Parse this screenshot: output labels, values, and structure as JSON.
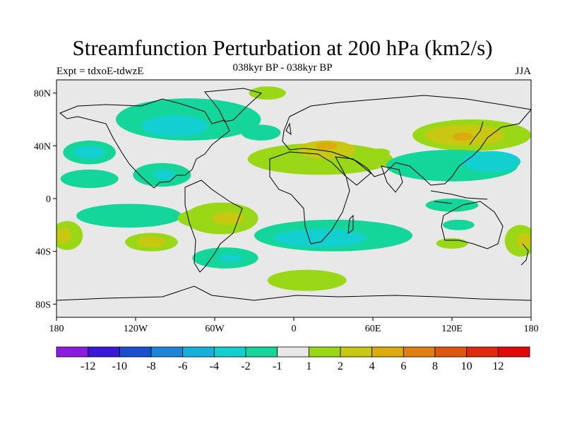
{
  "title": "Streamfunction Perturbation at 200 hPa (km2/s)",
  "subtitle": "038kyr BP - 038kyr BP",
  "expt_label": "Expt = tdxoE-tdwzE",
  "season": "JJA",
  "lat_ticks": [
    "80N",
    "40N",
    "0",
    "40S",
    "80S"
  ],
  "lon_ticks": [
    "180",
    "120W",
    "60W",
    "0",
    "60E",
    "120E",
    "180"
  ],
  "colorbar": {
    "colors": [
      "#8a1be0",
      "#3b18d8",
      "#1b4fd2",
      "#1a85d9",
      "#12b2da",
      "#14cfd0",
      "#15d69a",
      "#e8e8e8",
      "#9ad716",
      "#c8c812",
      "#dcab10",
      "#e07e12",
      "#e0560c",
      "#e02a0e",
      "#e00808"
    ],
    "labels": [
      "-12",
      "-10",
      "-8",
      "-6",
      "-4",
      "-2",
      "-1",
      "1",
      "2",
      "4",
      "6",
      "8",
      "10",
      "12"
    ]
  },
  "map": {
    "background": "#e8e8e8",
    "anomalies": [
      {
        "level": "-2",
        "color": "#15d69a",
        "lon": -80,
        "lat": 60,
        "rx": 55,
        "ry": 16
      },
      {
        "level": "-4",
        "color": "#14cfd0",
        "lon": -90,
        "lat": 55,
        "rx": 25,
        "ry": 8
      },
      {
        "level": "-2",
        "color": "#15d69a",
        "lon": -155,
        "lat": 35,
        "rx": 20,
        "ry": 9
      },
      {
        "level": "-4",
        "color": "#14cfd0",
        "lon": -155,
        "lat": 35,
        "rx": 12,
        "ry": 5
      },
      {
        "level": "-2",
        "color": "#15d69a",
        "lon": -155,
        "lat": 15,
        "rx": 22,
        "ry": 7
      },
      {
        "level": "-2",
        "color": "#15d69a",
        "lon": -100,
        "lat": 18,
        "rx": 22,
        "ry": 9
      },
      {
        "level": "-4",
        "color": "#14cfd0",
        "lon": -98,
        "lat": 18,
        "rx": 8,
        "ry": 4
      },
      {
        "level": "-2",
        "color": "#15d69a",
        "lon": -125,
        "lat": -13,
        "rx": 40,
        "ry": 9
      },
      {
        "level": "2",
        "color": "#9ad716",
        "lon": -70,
        "lat": -15,
        "rx": 18,
        "ry": 7
      },
      {
        "level": "2",
        "color": "#9ad716",
        "lon": -55,
        "lat": -15,
        "rx": 28,
        "ry": 12
      },
      {
        "level": "4",
        "color": "#c8c812",
        "lon": -50,
        "lat": -15,
        "rx": 12,
        "ry": 5
      },
      {
        "level": "2",
        "color": "#9ad716",
        "lon": -108,
        "lat": -33,
        "rx": 20,
        "ry": 7
      },
      {
        "level": "4",
        "color": "#c8c812",
        "lon": -108,
        "lat": -33,
        "rx": 11,
        "ry": 4
      },
      {
        "level": "-2",
        "color": "#15d69a",
        "lon": -52,
        "lat": -45,
        "rx": 25,
        "ry": 8
      },
      {
        "level": "-4",
        "color": "#14cfd0",
        "lon": -48,
        "lat": -45,
        "rx": 9,
        "ry": 3
      },
      {
        "level": "2",
        "color": "#9ad716",
        "lon": -172,
        "lat": -28,
        "rx": 12,
        "ry": 11
      },
      {
        "level": "4",
        "color": "#c8c812",
        "lon": -175,
        "lat": -28,
        "rx": 6,
        "ry": 6
      },
      {
        "level": "2",
        "color": "#9ad716",
        "lon": 172,
        "lat": -32,
        "rx": 12,
        "ry": 12
      },
      {
        "level": "4",
        "color": "#c8c812",
        "lon": 175,
        "lat": -32,
        "rx": 6,
        "ry": 6
      },
      {
        "level": "2",
        "color": "#9ad716",
        "lon": -20,
        "lat": 80,
        "rx": 14,
        "ry": 5
      },
      {
        "level": "-2",
        "color": "#15d69a",
        "lon": -25,
        "lat": 50,
        "rx": 15,
        "ry": 6
      },
      {
        "level": "2",
        "color": "#9ad716",
        "lon": 20,
        "lat": 30,
        "rx": 55,
        "ry": 12
      },
      {
        "level": "4",
        "color": "#c8c812",
        "lon": 25,
        "lat": 37,
        "rx": 22,
        "ry": 7
      },
      {
        "level": "6",
        "color": "#dcab10",
        "lon": 25,
        "lat": 40,
        "rx": 8,
        "ry": 3
      },
      {
        "level": "2",
        "color": "#9ad716",
        "lon": 135,
        "lat": 48,
        "rx": 45,
        "ry": 12
      },
      {
        "level": "4",
        "color": "#c8c812",
        "lon": 130,
        "lat": 48,
        "rx": 30,
        "ry": 8
      },
      {
        "level": "6",
        "color": "#dcab10",
        "lon": 128,
        "lat": 47,
        "rx": 8,
        "ry": 3
      },
      {
        "level": "-2",
        "color": "#15d69a",
        "lon": 120,
        "lat": 25,
        "rx": 50,
        "ry": 12
      },
      {
        "level": "-4",
        "color": "#14cfd0",
        "lon": 150,
        "lat": 28,
        "rx": 22,
        "ry": 8
      },
      {
        "level": "-2",
        "color": "#15d69a",
        "lon": 120,
        "lat": -5,
        "rx": 20,
        "ry": 5
      },
      {
        "level": "-2",
        "color": "#15d69a",
        "lon": 125,
        "lat": -20,
        "rx": 12,
        "ry": 4
      },
      {
        "level": "2",
        "color": "#9ad716",
        "lon": 120,
        "lat": -34,
        "rx": 12,
        "ry": 4
      },
      {
        "level": "-2",
        "color": "#15d69a",
        "lon": 30,
        "lat": -28,
        "rx": 60,
        "ry": 12
      },
      {
        "level": "-4",
        "color": "#14cfd0",
        "lon": 20,
        "lat": -30,
        "rx": 35,
        "ry": 7
      },
      {
        "level": "2",
        "color": "#9ad716",
        "lon": 10,
        "lat": -62,
        "rx": 30,
        "ry": 8
      },
      {
        "level": "2",
        "color": "#9ad716",
        "lon": 65,
        "lat": 35,
        "rx": 8,
        "ry": 3
      }
    ]
  }
}
